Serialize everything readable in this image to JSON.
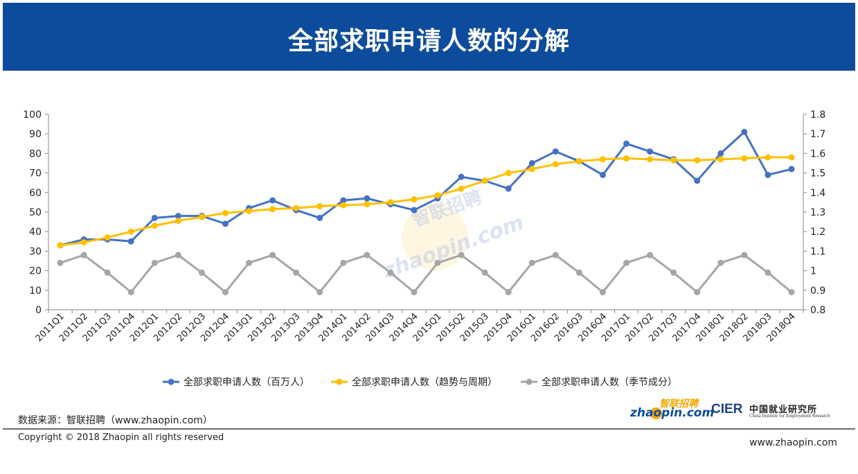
{
  "header": {
    "title": "全部求职申请人数的分解"
  },
  "footer": {
    "source": "数据来源：智联招聘（www.zhaopin.com）",
    "copyright": "Copyright © 2018 Zhaopin all rights reserved",
    "site": "www.zhaopin.com"
  },
  "logos": {
    "zhaopin_cn": "智联招聘",
    "zhaopin_en": "zhaopin.com",
    "cier": "CIER",
    "cier_cn": "中国就业研究所",
    "cier_en": "China Institute for Employment Research"
  },
  "watermark": {
    "cn": "智联招聘",
    "en": "zhaopin.com"
  },
  "colors": {
    "header_bg": "#0d4c9c",
    "series_total": "#4472c4",
    "series_trend": "#ffc000",
    "series_seasonal": "#a5a5a5"
  },
  "chart_data": {
    "type": "line",
    "categories": [
      "2011Q1",
      "2011Q2",
      "2011Q3",
      "2011Q4",
      "2012Q1",
      "2012Q2",
      "2012Q3",
      "2012Q4",
      "2013Q1",
      "2013Q2",
      "2013Q3",
      "2013Q4",
      "2014Q1",
      "2014Q2",
      "2014Q3",
      "2014Q4",
      "2015Q1",
      "2015Q2",
      "2015Q3",
      "2015Q4",
      "2016Q1",
      "2016Q2",
      "2016Q3",
      "2016Q4",
      "2017Q1",
      "2017Q2",
      "2017Q3",
      "2017Q4",
      "2018Q1",
      "2018Q2",
      "2018Q3",
      "2018Q4"
    ],
    "y_left": {
      "min": 0,
      "max": 100,
      "ticks": [
        "0",
        "10",
        "20",
        "30",
        "40",
        "50",
        "60",
        "70",
        "80",
        "90",
        "100"
      ]
    },
    "y_right": {
      "min": 0.8,
      "max": 1.8,
      "ticks": [
        "0.8",
        "0.9",
        "1",
        "1.1",
        "1.2",
        "1.3",
        "1.4",
        "1.5",
        "1.6",
        "1.7",
        "1.8"
      ]
    },
    "series": [
      {
        "name": "全部求职申请人数（百万人）",
        "axis": "left",
        "color": "#4472c4",
        "values": [
          33,
          36,
          36,
          35,
          47,
          48,
          48,
          44,
          52,
          56,
          51,
          47,
          56,
          57,
          54,
          51,
          57,
          68,
          66,
          62,
          75,
          81,
          76,
          69,
          85,
          81,
          77,
          66,
          80,
          91,
          69,
          72
        ]
      },
      {
        "name": "全部求职申请人数（趋势与周期）",
        "axis": "left",
        "color": "#ffc000",
        "values": [
          33,
          34.5,
          37,
          40,
          43,
          45.5,
          47.5,
          49.5,
          50.5,
          51.5,
          52,
          53,
          53.5,
          54,
          55,
          56.5,
          58.5,
          62,
          66,
          70,
          72,
          74.5,
          76,
          77,
          77.5,
          77,
          76.5,
          76.5,
          77,
          77.5,
          78,
          78
        ]
      },
      {
        "name": "全部求职申请人数（季节成分）",
        "axis": "right",
        "color": "#a5a5a5",
        "values": [
          1.04,
          1.08,
          0.99,
          0.89,
          1.04,
          1.08,
          0.99,
          0.89,
          1.04,
          1.08,
          0.99,
          0.89,
          1.04,
          1.08,
          0.99,
          0.89,
          1.04,
          1.08,
          0.99,
          0.89,
          1.04,
          1.08,
          0.99,
          0.89,
          1.04,
          1.08,
          0.99,
          0.89,
          1.04,
          1.08,
          0.99,
          0.89
        ]
      }
    ],
    "title": "",
    "xlabel": "",
    "ylabel": "",
    "legend": "bottom",
    "grid": false
  }
}
